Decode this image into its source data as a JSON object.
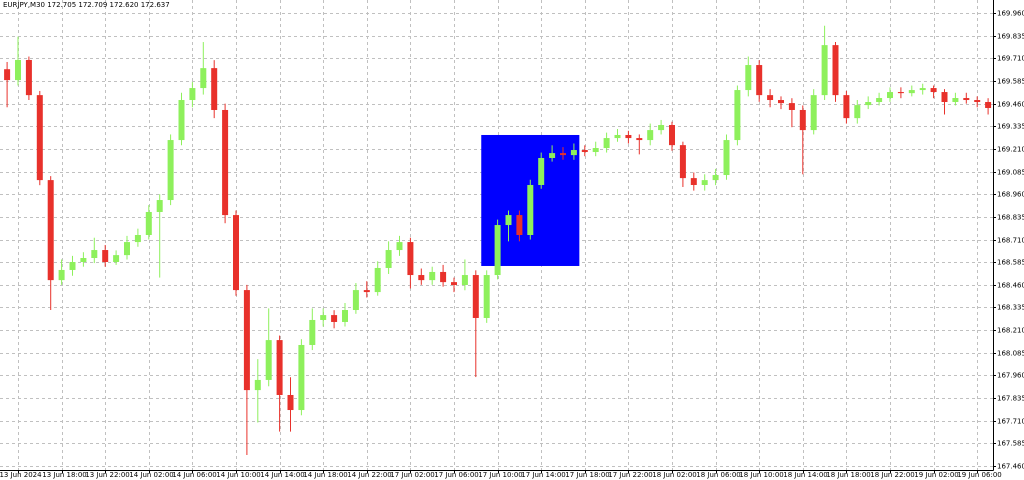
{
  "chart_data": {
    "type": "candlestick",
    "title": "EURJPY,M30  172.705 172.709 172.620 172.637",
    "up_color": "#8ef05c",
    "down_color": "#e8312b",
    "grid": true,
    "categories": [
      null,
      "13 Jun 2024",
      null,
      null,
      null,
      "13 Jun 18:00",
      null,
      null,
      null,
      "13 Jun 22:00",
      null,
      null,
      null,
      "14 Jun 02:00",
      null,
      null,
      null,
      "14 Jun 06:00",
      null,
      null,
      null,
      "14 Jun 10:00",
      null,
      null,
      null,
      "14 Jun 14:00",
      null,
      null,
      null,
      "14 Jun 18:00",
      null,
      null,
      null,
      "14 Jun 22:00",
      null,
      null,
      null,
      "17 Jun 02:00",
      null,
      null,
      null,
      "17 Jun 06:00",
      null,
      null,
      null,
      "17 Jun 10:00",
      null,
      null,
      null,
      "17 Jun 14:00",
      null,
      null,
      null,
      "17 Jun 18:00",
      null,
      null,
      null,
      "17 Jun 22:00",
      null,
      null,
      null,
      "18 Jun 02:00",
      null,
      null,
      null,
      "18 Jun 06:00",
      null,
      null,
      null,
      "18 Jun 10:00",
      null,
      null,
      null,
      "18 Jun 14:00",
      null,
      null,
      null,
      "18 Jun 18:00",
      null,
      null,
      null,
      "18 Jun 22:00",
      null,
      null,
      null,
      "19 Jun 02:00",
      null,
      null,
      null,
      "19 Jun 06:00",
      null
    ],
    "open": [
      169.65,
      169.59,
      169.701,
      169.507,
      169.038,
      168.486,
      168.542,
      168.586,
      168.608,
      168.652,
      168.586,
      168.624,
      168.696,
      168.735,
      168.862,
      168.928,
      169.259,
      169.48,
      169.546,
      169.656,
      169.425,
      168.845,
      168.431,
      167.879,
      167.935,
      168.155,
      167.852,
      167.769,
      168.128,
      168.266,
      168.293,
      168.255,
      168.321,
      168.431,
      168.42,
      168.553,
      168.652,
      168.696,
      168.514,
      168.486,
      168.531,
      168.475,
      168.459,
      168.514,
      168.277,
      168.514,
      168.79,
      168.845,
      168.735,
      169.011,
      169.16,
      169.187,
      169.176,
      169.204,
      169.193,
      169.215,
      169.27,
      169.287,
      169.27,
      169.259,
      169.314,
      169.342,
      169.231,
      169.049,
      169.011,
      169.038,
      169.066,
      169.259,
      169.535,
      169.673,
      169.507,
      169.48,
      169.463,
      169.425,
      169.314,
      169.507,
      169.783,
      169.507,
      169.38,
      169.452,
      169.469,
      169.491,
      169.524,
      169.518,
      169.535,
      169.546,
      169.524,
      169.469,
      169.491,
      169.48,
      169.469
    ],
    "high": [
      169.69,
      169.83,
      169.72,
      169.53,
      169.06,
      168.6,
      168.62,
      168.64,
      168.72,
      168.68,
      168.65,
      168.73,
      168.77,
      168.9,
      168.96,
      169.29,
      169.52,
      169.58,
      169.8,
      169.7,
      169.46,
      168.87,
      168.46,
      168.05,
      168.33,
      168.18,
      167.95,
      168.16,
      168.33,
      168.33,
      168.32,
      168.36,
      168.47,
      168.48,
      168.59,
      168.7,
      168.73,
      168.72,
      168.55,
      168.56,
      168.57,
      168.5,
      168.6,
      168.54,
      168.54,
      168.82,
      168.87,
      168.87,
      169.04,
      169.19,
      169.23,
      169.22,
      169.24,
      169.23,
      169.25,
      169.3,
      169.32,
      169.31,
      169.29,
      169.35,
      169.37,
      169.36,
      169.25,
      169.08,
      169.07,
      169.1,
      169.29,
      169.56,
      169.72,
      169.7,
      169.54,
      169.5,
      169.49,
      169.45,
      169.54,
      169.89,
      169.8,
      169.53,
      169.48,
      169.5,
      169.52,
      169.55,
      169.55,
      169.56,
      169.57,
      169.56,
      169.54,
      169.52,
      169.52,
      169.5,
      169.49
    ],
    "low": [
      169.44,
      169.56,
      169.48,
      169.01,
      168.321,
      168.46,
      168.51,
      168.56,
      168.58,
      168.56,
      168.57,
      168.6,
      168.67,
      168.71,
      168.5,
      168.9,
      169.23,
      169.44,
      169.51,
      169.38,
      168.8,
      168.4,
      167.521,
      167.7,
      167.9,
      167.65,
      167.65,
      167.74,
      168.1,
      168.23,
      168.22,
      168.23,
      168.3,
      168.39,
      168.4,
      168.52,
      168.62,
      168.44,
      168.46,
      168.46,
      168.45,
      168.42,
      168.43,
      167.951,
      168.25,
      168.49,
      168.7,
      168.7,
      168.71,
      168.99,
      169.14,
      169.15,
      169.15,
      169.17,
      169.17,
      169.19,
      169.25,
      169.24,
      169.18,
      169.23,
      169.29,
      169.2,
      169.0,
      168.98,
      168.98,
      169.01,
      169.04,
      169.23,
      169.5,
      169.47,
      169.44,
      169.43,
      169.33,
      169.07,
      169.29,
      169.48,
      169.47,
      169.35,
      169.35,
      169.43,
      169.45,
      169.47,
      169.49,
      169.5,
      169.51,
      169.49,
      169.4,
      169.45,
      169.46,
      169.44,
      169.4
    ],
    "close": [
      169.59,
      169.701,
      169.507,
      169.038,
      168.486,
      168.542,
      168.586,
      168.608,
      168.652,
      168.586,
      168.624,
      168.696,
      168.735,
      168.862,
      168.928,
      169.259,
      169.48,
      169.546,
      169.656,
      169.425,
      168.845,
      168.431,
      167.879,
      167.935,
      168.155,
      167.852,
      167.769,
      168.128,
      168.266,
      168.293,
      168.255,
      168.321,
      168.431,
      168.42,
      168.553,
      168.652,
      168.696,
      168.514,
      168.486,
      168.531,
      168.475,
      168.459,
      168.514,
      168.277,
      168.514,
      168.79,
      168.845,
      168.735,
      169.011,
      169.16,
      169.187,
      169.176,
      169.204,
      169.193,
      169.215,
      169.27,
      169.287,
      169.27,
      169.259,
      169.314,
      169.342,
      169.231,
      169.049,
      169.011,
      169.038,
      169.066,
      169.259,
      169.535,
      169.673,
      169.507,
      169.48,
      169.463,
      169.425,
      169.314,
      169.507,
      169.783,
      169.507,
      169.38,
      169.452,
      169.469,
      169.491,
      169.524,
      169.518,
      169.535,
      169.546,
      169.524,
      169.469,
      169.491,
      169.48,
      169.469,
      169.436
    ],
    "rectangle": {
      "color": "#0000ff",
      "price_range": [
        168.564,
        169.287
      ],
      "candle_range": [
        44,
        52
      ]
    },
    "ylim": [
      167.438,
      170.032
    ],
    "yticks": [
      {
        "value": 169.96,
        "label": "169.960"
      },
      169.835,
      {
        "value": 169.71,
        "label": "169.710"
      },
      169.585,
      {
        "value": 169.46,
        "label": "169.460"
      },
      169.335,
      {
        "value": 169.21,
        "label": "169.210"
      },
      169.085,
      {
        "value": 168.96,
        "label": "168.960"
      },
      168.835,
      {
        "value": 168.71,
        "label": "168.710"
      },
      168.585,
      {
        "value": 168.46,
        "label": "168.460"
      },
      168.335,
      {
        "value": 168.21,
        "label": "168.210"
      },
      168.085,
      {
        "value": 167.96,
        "label": "167.960"
      },
      167.835,
      {
        "value": 167.71,
        "label": "167.710"
      },
      167.585,
      {
        "value": 167.46,
        "label": "167.460"
      }
    ]
  }
}
